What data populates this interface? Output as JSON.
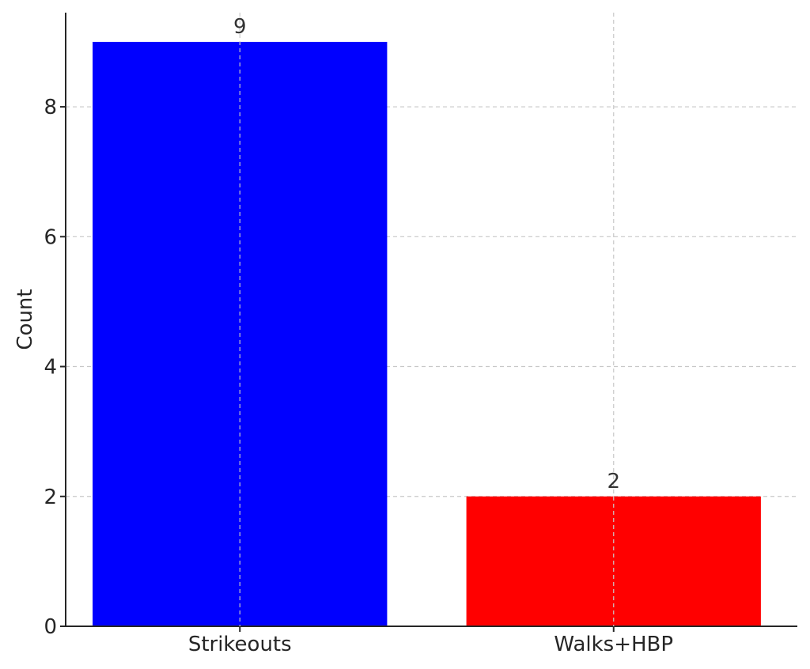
{
  "chart_data": {
    "type": "bar",
    "categories": [
      "Strikeouts",
      "Walks+HBP"
    ],
    "values": [
      9,
      2
    ],
    "colors": [
      "#0000ff",
      "#ff0000"
    ],
    "title": "",
    "xlabel": "",
    "ylabel": "Count",
    "ylim": [
      0,
      9.45
    ],
    "yticks": [
      0,
      2,
      4,
      6,
      8
    ],
    "grid": true,
    "data_labels": [
      "9",
      "2"
    ]
  }
}
